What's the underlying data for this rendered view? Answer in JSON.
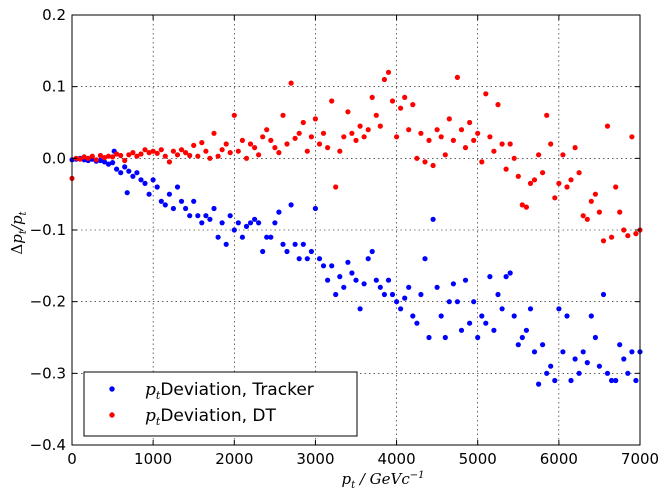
{
  "chart_data": {
    "type": "scatter",
    "title": "",
    "xlabel": "p_t / GeVc^-1",
    "ylabel": "Δp_t/p_t",
    "xlim": [
      0,
      7000
    ],
    "ylim": [
      -0.4,
      0.2
    ],
    "x_ticks": [
      0,
      1000,
      2000,
      3000,
      4000,
      5000,
      6000,
      7000
    ],
    "y_ticks": [
      -0.4,
      -0.3,
      -0.2,
      -0.1,
      0.0,
      0.1,
      0.2
    ],
    "x_tick_labels": [
      "0",
      "1000",
      "2000",
      "3000",
      "4000",
      "5000",
      "6000",
      "7000"
    ],
    "y_tick_labels": [
      "−0.4",
      "−0.3",
      "−0.2",
      "−0.1",
      "0.0",
      "0.1",
      "0.2"
    ],
    "grid": true,
    "legend_position": "lower-left",
    "series": [
      {
        "name": "p_t Deviation, Tracker",
        "legend_label": "Deviation, Tracker",
        "color": "#0000ff",
        "points": [
          [
            0,
            -0.002
          ],
          [
            50,
            -0.001
          ],
          [
            100,
            0.0
          ],
          [
            150,
            -0.002
          ],
          [
            200,
            -0.003
          ],
          [
            250,
            -0.001
          ],
          [
            300,
            -0.004
          ],
          [
            350,
            -0.003
          ],
          [
            400,
            -0.005
          ],
          [
            450,
            -0.008
          ],
          [
            500,
            -0.006
          ],
          [
            520,
            0.01
          ],
          [
            550,
            -0.015
          ],
          [
            600,
            -0.02
          ],
          [
            650,
            -0.012
          ],
          [
            680,
            -0.048
          ],
          [
            700,
            -0.018
          ],
          [
            750,
            -0.025
          ],
          [
            800,
            -0.02
          ],
          [
            850,
            -0.03
          ],
          [
            900,
            -0.035
          ],
          [
            950,
            -0.05
          ],
          [
            1000,
            -0.03
          ],
          [
            1050,
            -0.04
          ],
          [
            1100,
            -0.06
          ],
          [
            1150,
            -0.065
          ],
          [
            1200,
            -0.05
          ],
          [
            1250,
            -0.07
          ],
          [
            1300,
            -0.04
          ],
          [
            1350,
            -0.06
          ],
          [
            1400,
            -0.07
          ],
          [
            1450,
            -0.08
          ],
          [
            1500,
            -0.06
          ],
          [
            1550,
            -0.08
          ],
          [
            1600,
            -0.09
          ],
          [
            1650,
            -0.08
          ],
          [
            1700,
            -0.085
          ],
          [
            1750,
            -0.07
          ],
          [
            1800,
            -0.11
          ],
          [
            1850,
            -0.09
          ],
          [
            1900,
            -0.12
          ],
          [
            1950,
            -0.08
          ],
          [
            2000,
            -0.1
          ],
          [
            2050,
            -0.09
          ],
          [
            2100,
            -0.11
          ],
          [
            2150,
            -0.095
          ],
          [
            2200,
            -0.09
          ],
          [
            2250,
            -0.085
          ],
          [
            2300,
            -0.09
          ],
          [
            2350,
            -0.13
          ],
          [
            2400,
            -0.11
          ],
          [
            2450,
            -0.11
          ],
          [
            2500,
            -0.09
          ],
          [
            2550,
            -0.075
          ],
          [
            2600,
            -0.12
          ],
          [
            2650,
            -0.13
          ],
          [
            2700,
            -0.065
          ],
          [
            2750,
            -0.12
          ],
          [
            2800,
            -0.14
          ],
          [
            2850,
            -0.12
          ],
          [
            2900,
            -0.14
          ],
          [
            2950,
            -0.13
          ],
          [
            3000,
            -0.07
          ],
          [
            3050,
            -0.14
          ],
          [
            3100,
            -0.15
          ],
          [
            3150,
            -0.17
          ],
          [
            3200,
            -0.15
          ],
          [
            3250,
            -0.19
          ],
          [
            3300,
            -0.165
          ],
          [
            3350,
            -0.18
          ],
          [
            3400,
            -0.145
          ],
          [
            3450,
            -0.16
          ],
          [
            3500,
            -0.17
          ],
          [
            3550,
            -0.21
          ],
          [
            3600,
            -0.175
          ],
          [
            3650,
            -0.14
          ],
          [
            3700,
            -0.13
          ],
          [
            3750,
            -0.17
          ],
          [
            3800,
            -0.18
          ],
          [
            3850,
            -0.19
          ],
          [
            3900,
            -0.17
          ],
          [
            3950,
            -0.19
          ],
          [
            4000,
            -0.2
          ],
          [
            4050,
            -0.21
          ],
          [
            4100,
            -0.195
          ],
          [
            4150,
            -0.18
          ],
          [
            4200,
            -0.22
          ],
          [
            4250,
            -0.23
          ],
          [
            4300,
            -0.19
          ],
          [
            4350,
            -0.14
          ],
          [
            4400,
            -0.25
          ],
          [
            4450,
            -0.085
          ],
          [
            4500,
            -0.18
          ],
          [
            4550,
            -0.22
          ],
          [
            4600,
            -0.25
          ],
          [
            4650,
            -0.2
          ],
          [
            4700,
            -0.175
          ],
          [
            4750,
            -0.2
          ],
          [
            4800,
            -0.24
          ],
          [
            4850,
            -0.17
          ],
          [
            4900,
            -0.23
          ],
          [
            4950,
            -0.2
          ],
          [
            5000,
            -0.25
          ],
          [
            5050,
            -0.22
          ],
          [
            5100,
            -0.23
          ],
          [
            5150,
            -0.165
          ],
          [
            5200,
            -0.24
          ],
          [
            5250,
            -0.19
          ],
          [
            5300,
            -0.21
          ],
          [
            5350,
            -0.165
          ],
          [
            5400,
            -0.16
          ],
          [
            5450,
            -0.22
          ],
          [
            5500,
            -0.26
          ],
          [
            5550,
            -0.25
          ],
          [
            5600,
            -0.24
          ],
          [
            5650,
            -0.21
          ],
          [
            5700,
            -0.27
          ],
          [
            5750,
            -0.315
          ],
          [
            5800,
            -0.26
          ],
          [
            5850,
            -0.3
          ],
          [
            5900,
            -0.29
          ],
          [
            5950,
            -0.31
          ],
          [
            6000,
            -0.21
          ],
          [
            6050,
            -0.27
          ],
          [
            6100,
            -0.22
          ],
          [
            6150,
            -0.31
          ],
          [
            6200,
            -0.28
          ],
          [
            6250,
            -0.3
          ],
          [
            6300,
            -0.27
          ],
          [
            6350,
            -0.285
          ],
          [
            6400,
            -0.22
          ],
          [
            6450,
            -0.25
          ],
          [
            6500,
            -0.29
          ],
          [
            6550,
            -0.19
          ],
          [
            6600,
            -0.3
          ],
          [
            6650,
            -0.31
          ],
          [
            6700,
            -0.31
          ],
          [
            6750,
            -0.26
          ],
          [
            6800,
            -0.28
          ],
          [
            6850,
            -0.3
          ],
          [
            6900,
            -0.27
          ],
          [
            6950,
            -0.31
          ],
          [
            7000,
            -0.27
          ]
        ]
      },
      {
        "name": "p_t Deviation, DT",
        "legend_label": "Deviation, DT",
        "color": "#ff0000",
        "points": [
          [
            0,
            -0.028
          ],
          [
            50,
            0.0
          ],
          [
            100,
            -0.001
          ],
          [
            150,
            0.002
          ],
          [
            200,
            0.0
          ],
          [
            250,
            0.003
          ],
          [
            300,
            -0.002
          ],
          [
            350,
            0.004
          ],
          [
            400,
            0.001
          ],
          [
            450,
            0.003
          ],
          [
            500,
            0.002
          ],
          [
            550,
            0.006
          ],
          [
            600,
            0.004
          ],
          [
            650,
            -0.003
          ],
          [
            700,
            0.005
          ],
          [
            750,
            0.008
          ],
          [
            800,
            0.003
          ],
          [
            850,
            0.006
          ],
          [
            900,
            0.012
          ],
          [
            950,
            0.008
          ],
          [
            1000,
            0.01
          ],
          [
            1050,
            0.007
          ],
          [
            1100,
            0.012
          ],
          [
            1150,
            0.003
          ],
          [
            1200,
            -0.005
          ],
          [
            1250,
            0.01
          ],
          [
            1300,
            0.005
          ],
          [
            1350,
            0.012
          ],
          [
            1400,
            0.008
          ],
          [
            1450,
            0.004
          ],
          [
            1500,
            0.018
          ],
          [
            1550,
            0.003
          ],
          [
            1600,
            0.022
          ],
          [
            1650,
            0.01
          ],
          [
            1700,
            0.0
          ],
          [
            1750,
            0.035
          ],
          [
            1800,
            0.003
          ],
          [
            1850,
            0.012
          ],
          [
            1900,
            0.02
          ],
          [
            1950,
            0.008
          ],
          [
            2000,
            0.06
          ],
          [
            2050,
            0.01
          ],
          [
            2100,
            0.025
          ],
          [
            2150,
            0.0
          ],
          [
            2200,
            0.02
          ],
          [
            2250,
            0.015
          ],
          [
            2300,
            0.005
          ],
          [
            2350,
            0.03
          ],
          [
            2400,
            0.04
          ],
          [
            2450,
            0.025
          ],
          [
            2500,
            0.015
          ],
          [
            2550,
            0.008
          ],
          [
            2600,
            0.06
          ],
          [
            2650,
            0.02
          ],
          [
            2700,
            0.105
          ],
          [
            2750,
            0.028
          ],
          [
            2800,
            0.035
          ],
          [
            2850,
            0.05
          ],
          [
            2900,
            0.01
          ],
          [
            2950,
            0.03
          ],
          [
            3000,
            0.055
          ],
          [
            3050,
            0.02
          ],
          [
            3100,
            0.035
          ],
          [
            3150,
            0.015
          ],
          [
            3200,
            0.08
          ],
          [
            3250,
            -0.04
          ],
          [
            3300,
            0.01
          ],
          [
            3350,
            0.03
          ],
          [
            3400,
            0.065
          ],
          [
            3450,
            0.035
          ],
          [
            3500,
            0.025
          ],
          [
            3550,
            0.045
          ],
          [
            3600,
            0.03
          ],
          [
            3650,
            0.04
          ],
          [
            3700,
            0.085
          ],
          [
            3750,
            0.06
          ],
          [
            3800,
            0.045
          ],
          [
            3850,
            0.11
          ],
          [
            3900,
            0.12
          ],
          [
            3950,
            0.08
          ],
          [
            4000,
            0.03
          ],
          [
            4050,
            0.07
          ],
          [
            4100,
            0.085
          ],
          [
            4150,
            0.04
          ],
          [
            4200,
            0.075
          ],
          [
            4250,
            0.0
          ],
          [
            4300,
            0.035
          ],
          [
            4350,
            -0.005
          ],
          [
            4400,
            0.025
          ],
          [
            4450,
            -0.01
          ],
          [
            4500,
            0.04
          ],
          [
            4550,
            0.03
          ],
          [
            4600,
            0.005
          ],
          [
            4650,
            0.055
          ],
          [
            4700,
            0.025
          ],
          [
            4750,
            0.113
          ],
          [
            4800,
            0.04
          ],
          [
            4850,
            0.015
          ],
          [
            4900,
            0.05
          ],
          [
            4950,
            0.025
          ],
          [
            5000,
            0.035
          ],
          [
            5050,
            -0.005
          ],
          [
            5100,
            0.09
          ],
          [
            5150,
            0.03
          ],
          [
            5200,
            0.01
          ],
          [
            5250,
            0.075
          ],
          [
            5300,
            0.02
          ],
          [
            5350,
            -0.015
          ],
          [
            5400,
            0.02
          ],
          [
            5450,
            0.0
          ],
          [
            5500,
            -0.025
          ],
          [
            5550,
            -0.065
          ],
          [
            5600,
            -0.068
          ],
          [
            5650,
            -0.035
          ],
          [
            5700,
            -0.03
          ],
          [
            5750,
            0.005
          ],
          [
            5800,
            -0.02
          ],
          [
            5850,
            0.06
          ],
          [
            5900,
            0.02
          ],
          [
            5950,
            -0.055
          ],
          [
            6000,
            -0.035
          ],
          [
            6050,
            0.005
          ],
          [
            6100,
            -0.04
          ],
          [
            6150,
            -0.03
          ],
          [
            6200,
            0.015
          ],
          [
            6250,
            -0.02
          ],
          [
            6300,
            -0.08
          ],
          [
            6350,
            -0.085
          ],
          [
            6400,
            -0.06
          ],
          [
            6450,
            -0.05
          ],
          [
            6500,
            -0.075
          ],
          [
            6550,
            -0.115
          ],
          [
            6600,
            0.045
          ],
          [
            6650,
            -0.11
          ],
          [
            6700,
            -0.04
          ],
          [
            6750,
            -0.075
          ],
          [
            6800,
            -0.1
          ],
          [
            6850,
            -0.108
          ],
          [
            6900,
            0.03
          ],
          [
            6950,
            -0.105
          ],
          [
            7000,
            -0.1
          ]
        ]
      }
    ]
  }
}
